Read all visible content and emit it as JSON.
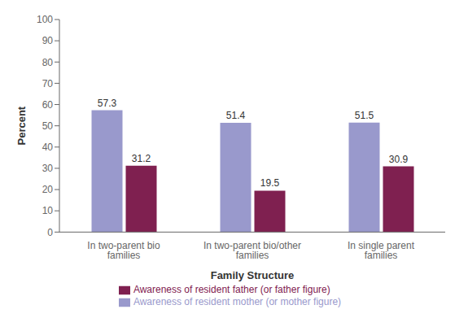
{
  "chart_data": {
    "type": "bar",
    "categories": [
      "In two-parent bio families",
      "In two-parent bio/other families",
      "In single parent families"
    ],
    "series": [
      {
        "name": "Awareness of resident mother (or mother figure)",
        "color": "#9999cc",
        "values": [
          57.3,
          51.4,
          51.5
        ]
      },
      {
        "name": "Awareness of resident father (or father figure)",
        "color": "#7f2050",
        "values": [
          31.2,
          19.5,
          30.9
        ]
      }
    ],
    "xlabel": "Family Structure",
    "ylabel": "Percent",
    "ylim": [
      0,
      100
    ],
    "yticks": [
      0,
      10,
      20,
      30,
      40,
      50,
      60,
      70,
      80,
      90,
      100
    ],
    "data_labels": true,
    "grid": false,
    "legend": "bottom"
  }
}
